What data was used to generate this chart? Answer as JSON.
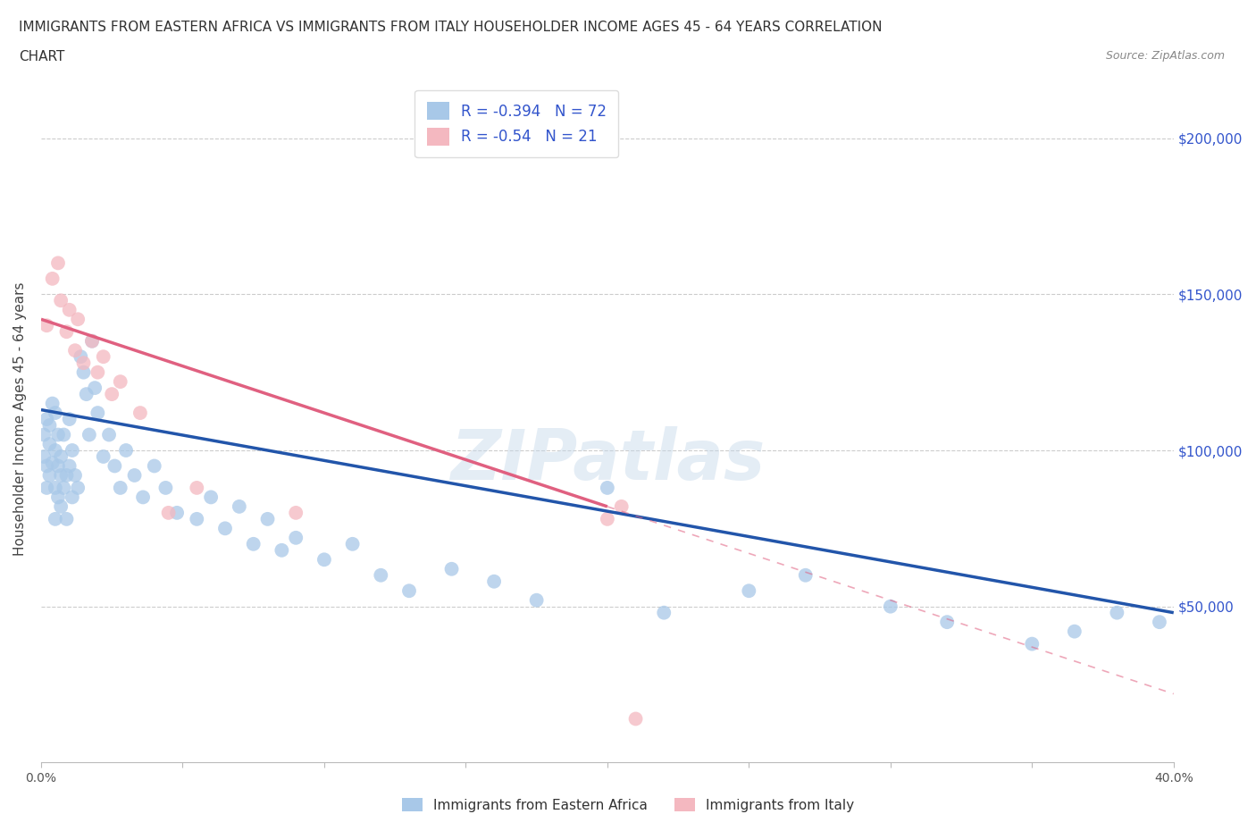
{
  "title_line1": "IMMIGRANTS FROM EASTERN AFRICA VS IMMIGRANTS FROM ITALY HOUSEHOLDER INCOME AGES 45 - 64 YEARS CORRELATION",
  "title_line2": "CHART",
  "source_text": "Source: ZipAtlas.com",
  "ylabel": "Householder Income Ages 45 - 64 years",
  "xlim": [
    0.0,
    0.4
  ],
  "ylim": [
    0,
    220000
  ],
  "yticks": [
    0,
    50000,
    100000,
    150000,
    200000
  ],
  "ytick_labels": [
    "",
    "$50,000",
    "$100,000",
    "$150,000",
    "$200,000"
  ],
  "xticks": [
    0.0,
    0.05,
    0.1,
    0.15,
    0.2,
    0.25,
    0.3,
    0.35,
    0.4
  ],
  "xtick_labels": [
    "0.0%",
    "",
    "",
    "",
    "",
    "",
    "",
    "",
    "40.0%"
  ],
  "r_eastern_africa": -0.394,
  "n_eastern_africa": 72,
  "r_italy": -0.54,
  "n_italy": 21,
  "color_eastern_africa": "#a8c8e8",
  "color_italy": "#f4b8c0",
  "line_color_eastern_africa": "#2255aa",
  "line_color_italy": "#e06080",
  "watermark": "ZIPatlas",
  "eastern_africa_x": [
    0.001,
    0.001,
    0.002,
    0.002,
    0.002,
    0.003,
    0.003,
    0.003,
    0.004,
    0.004,
    0.005,
    0.005,
    0.005,
    0.005,
    0.006,
    0.006,
    0.006,
    0.007,
    0.007,
    0.007,
    0.008,
    0.008,
    0.009,
    0.009,
    0.01,
    0.01,
    0.011,
    0.011,
    0.012,
    0.013,
    0.014,
    0.015,
    0.016,
    0.017,
    0.018,
    0.019,
    0.02,
    0.022,
    0.024,
    0.026,
    0.028,
    0.03,
    0.033,
    0.036,
    0.04,
    0.044,
    0.048,
    0.055,
    0.06,
    0.065,
    0.07,
    0.075,
    0.08,
    0.085,
    0.09,
    0.1,
    0.11,
    0.12,
    0.13,
    0.145,
    0.16,
    0.175,
    0.2,
    0.22,
    0.25,
    0.27,
    0.3,
    0.32,
    0.35,
    0.365,
    0.38,
    0.395
  ],
  "eastern_africa_y": [
    98000,
    105000,
    95000,
    110000,
    88000,
    102000,
    92000,
    108000,
    96000,
    115000,
    88000,
    100000,
    78000,
    112000,
    95000,
    85000,
    105000,
    92000,
    98000,
    82000,
    88000,
    105000,
    92000,
    78000,
    95000,
    110000,
    85000,
    100000,
    92000,
    88000,
    130000,
    125000,
    118000,
    105000,
    135000,
    120000,
    112000,
    98000,
    105000,
    95000,
    88000,
    100000,
    92000,
    85000,
    95000,
    88000,
    80000,
    78000,
    85000,
    75000,
    82000,
    70000,
    78000,
    68000,
    72000,
    65000,
    70000,
    60000,
    55000,
    62000,
    58000,
    52000,
    88000,
    48000,
    55000,
    60000,
    50000,
    45000,
    38000,
    42000,
    48000,
    45000
  ],
  "italy_x": [
    0.002,
    0.004,
    0.006,
    0.007,
    0.009,
    0.01,
    0.012,
    0.013,
    0.015,
    0.018,
    0.02,
    0.022,
    0.025,
    0.028,
    0.035,
    0.045,
    0.055,
    0.09,
    0.2,
    0.205,
    0.21
  ],
  "italy_y": [
    140000,
    155000,
    160000,
    148000,
    138000,
    145000,
    132000,
    142000,
    128000,
    135000,
    125000,
    130000,
    118000,
    122000,
    112000,
    80000,
    88000,
    80000,
    78000,
    82000,
    14000
  ],
  "trend_ea_x0": 0.0,
  "trend_ea_y0": 113000,
  "trend_ea_x1": 0.4,
  "trend_ea_y1": 48000,
  "trend_it_solid_x0": 0.0,
  "trend_it_solid_y0": 142000,
  "trend_it_solid_x1": 0.2,
  "trend_it_solid_y1": 82000,
  "trend_it_dash_x0": 0.2,
  "trend_it_dash_y0": 82000,
  "trend_it_dash_x1": 0.4,
  "trend_it_dash_y1": 22000
}
